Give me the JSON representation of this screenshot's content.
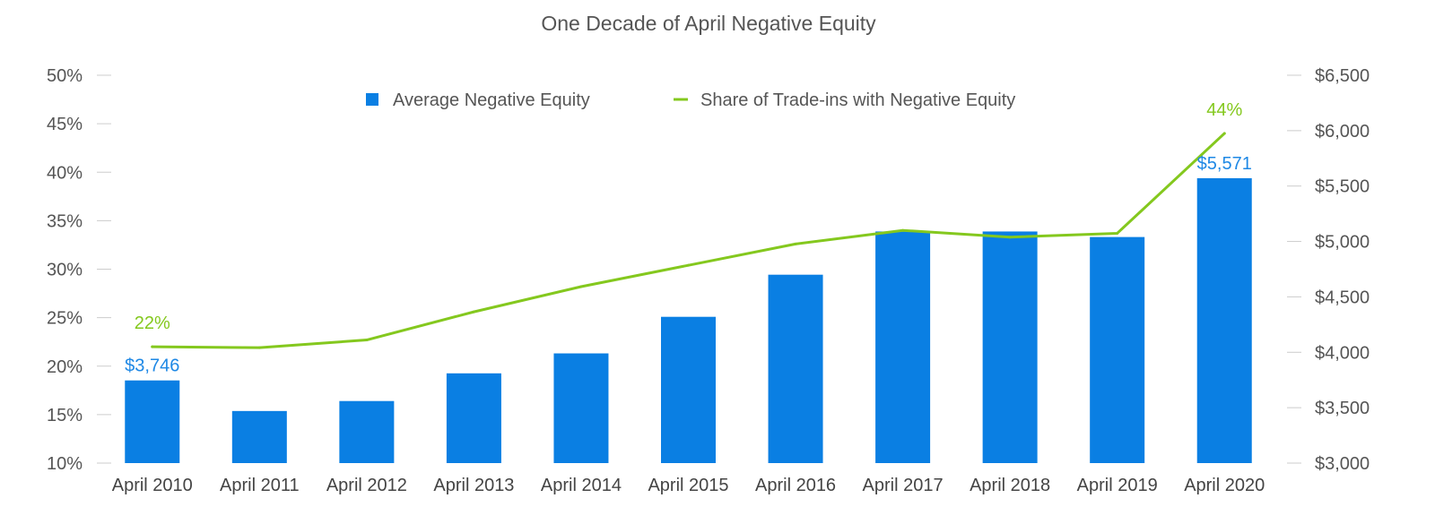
{
  "chart_data": {
    "type": "bar",
    "title": "One Decade of April Negative Equity",
    "categories": [
      "April 2010",
      "April 2011",
      "April 2012",
      "April 2013",
      "April 2014",
      "April 2015",
      "April 2016",
      "April 2017",
      "April 2018",
      "April 2019",
      "April 2020"
    ],
    "series": [
      {
        "name": "Average Negative Equity",
        "type": "bar",
        "axis": "right",
        "color": "#0A7FE3",
        "values": [
          3746,
          3470,
          3560,
          3810,
          3990,
          4320,
          4700,
          5090,
          5090,
          5040,
          5571
        ]
      },
      {
        "name": "Share of Trade-ins with Negative Equity",
        "type": "line",
        "axis": "left",
        "color": "#84C81E",
        "values": [
          22,
          21.9,
          22.7,
          25.6,
          28.2,
          30.4,
          32.6,
          34,
          33.3,
          33.7,
          44
        ]
      }
    ],
    "y_left": {
      "min": 10,
      "max": 50,
      "step": 5,
      "ticks": [
        "10%",
        "15%",
        "20%",
        "25%",
        "30%",
        "35%",
        "40%",
        "45%",
        "50%"
      ]
    },
    "y_right": {
      "min": 3000,
      "max": 6500,
      "step": 500,
      "ticks": [
        "$3,000",
        "$3,500",
        "$4,000",
        "$4,500",
        "$5,000",
        "$5,500",
        "$6,000",
        "$6,500"
      ]
    },
    "annotations": [
      {
        "series": 0,
        "index": 0,
        "text": "$3,746"
      },
      {
        "series": 0,
        "index": 10,
        "text": "$5,571"
      },
      {
        "series": 1,
        "index": 0,
        "text": "22%"
      },
      {
        "series": 1,
        "index": 10,
        "text": "44%"
      }
    ],
    "legend": "top-center",
    "grid": false
  }
}
